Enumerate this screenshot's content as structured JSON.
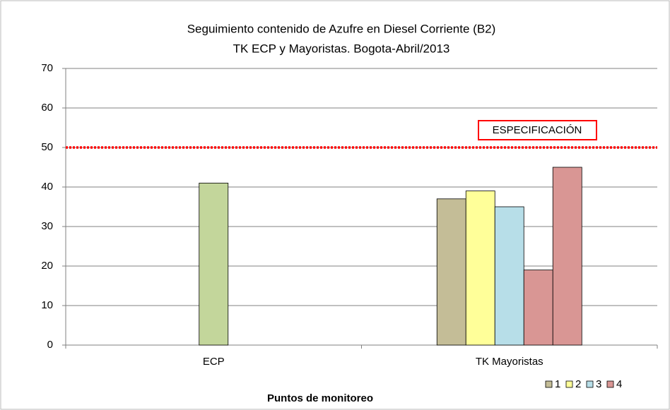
{
  "chart_data": {
    "type": "bar",
    "title": [
      "Seguimiento  contenido de Azufre en Diesel Corriente (B2)",
      "TK ECP y Mayoristas.  Bogota-Abril/2013"
    ],
    "x_label": "Puntos  de monitoreo",
    "categories": [
      "ECP",
      "TK Mayoristas"
    ],
    "series": [
      {
        "color": "#c3d69b",
        "values": [
          41,
          null
        ]
      },
      {
        "name": "1",
        "color": "#c4bd97",
        "values": [
          null,
          37
        ]
      },
      {
        "name": "2",
        "color": "#ffff99",
        "values": [
          null,
          39
        ]
      },
      {
        "name": "3",
        "color": "#b7dee8",
        "values": [
          null,
          35
        ]
      },
      {
        "name": "4",
        "color": "#d99694",
        "values": [
          null,
          19
        ]
      },
      {
        "color": "#d99694",
        "values": [
          null,
          45
        ]
      }
    ],
    "ylim": [
      0,
      70
    ],
    "yticks": [
      0,
      10,
      20,
      30,
      40,
      50,
      60,
      70
    ],
    "grid": true,
    "reference_line": {
      "value": 50,
      "color": "#ff0000",
      "label": "ESPECIFICACIÓN"
    },
    "legend": "bottom-right"
  }
}
